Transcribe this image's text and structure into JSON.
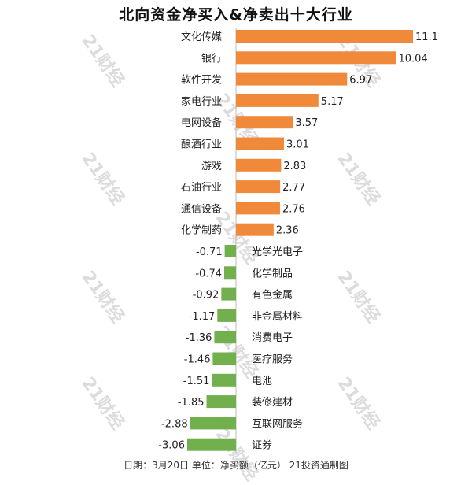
{
  "watermark": "21财经",
  "colors": {
    "positive": "#F08A3A",
    "negative": "#72B04E"
  },
  "chart_data": {
    "type": "bar",
    "orientation": "horizontal",
    "title": "北向资金净买入&净卖出十大行业",
    "categories": [
      "文化传媒",
      "银行",
      "软件开发",
      "家电行业",
      "电网设备",
      "酿酒行业",
      "游戏",
      "石油行业",
      "通信设备",
      "化学制药",
      "光学光电子",
      "化学制品",
      "有色金属",
      "非金属材料",
      "消费电子",
      "医疗服务",
      "电池",
      "装修建材",
      "互联网服务",
      "证券"
    ],
    "values": [
      11.1,
      10.04,
      6.97,
      5.17,
      3.57,
      3.01,
      2.83,
      2.77,
      2.76,
      2.36,
      -0.71,
      -0.74,
      -0.92,
      -1.17,
      -1.36,
      -1.46,
      -1.51,
      -1.85,
      -2.88,
      -3.06
    ],
    "value_labels": [
      "11.1",
      "10.04",
      "6.97",
      "5.17",
      "3.57",
      "3.01",
      "2.83",
      "2.77",
      "2.76",
      "2.36",
      "-0.71",
      "-0.74",
      "-0.92",
      "-1.17",
      "-1.36",
      "-1.46",
      "-1.51",
      "-1.85",
      "-2.88",
      "-3.06"
    ],
    "xlim": [
      -3.06,
      11.1
    ],
    "grid": false,
    "legend": "none"
  },
  "footer": "日期：3月20日 单位：净买额（亿元） 21投资通制图"
}
